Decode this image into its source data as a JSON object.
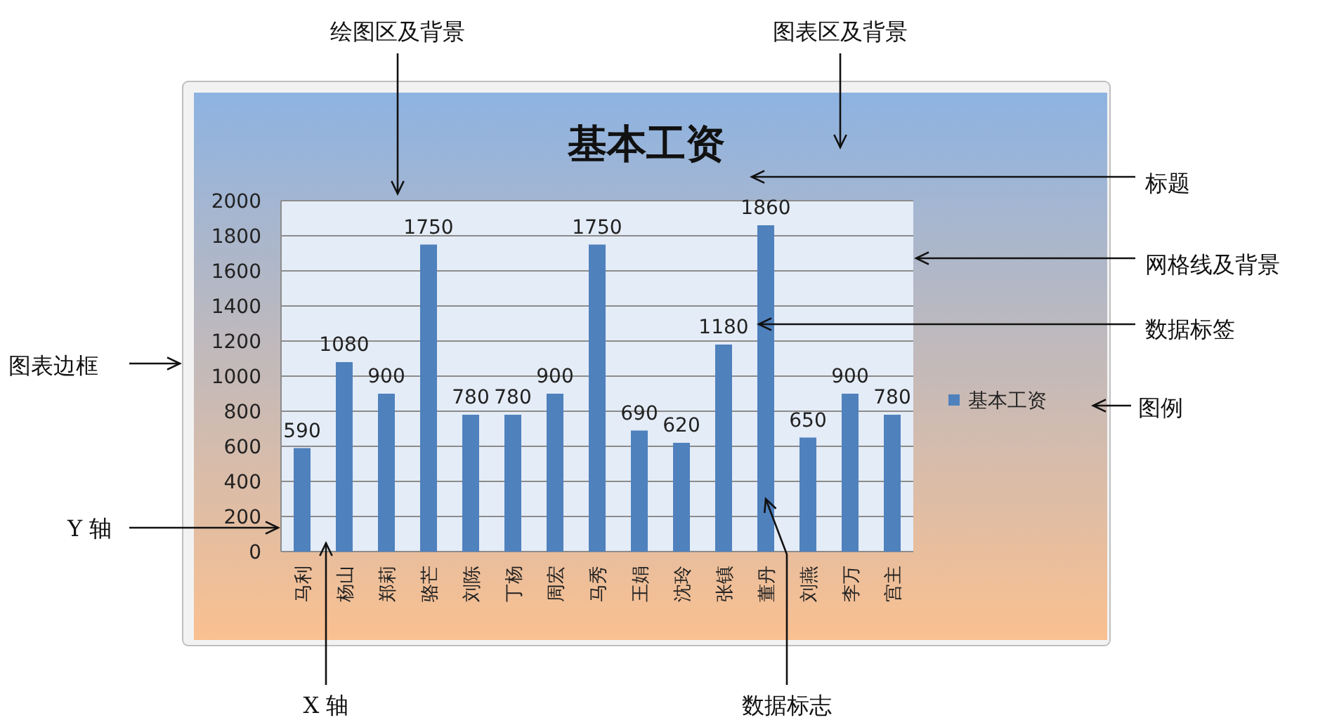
{
  "chart_data": {
    "type": "bar",
    "title": "基本工资",
    "categories": [
      "马利",
      "杨山",
      "郑莉",
      "骆芒",
      "刘陈",
      "丁杨",
      "周宏",
      "马秀",
      "王娟",
      "沈玲",
      "张镇",
      "董丹",
      "刘燕",
      "李万",
      "宫主"
    ],
    "series": [
      {
        "name": "基本工资",
        "color": "#4f81bd",
        "values": [
          590,
          1080,
          900,
          1750,
          780,
          780,
          900,
          1750,
          690,
          620,
          1180,
          1860,
          650,
          900,
          780
        ]
      }
    ],
    "ylim": [
      0,
      2000
    ],
    "yticks": [
      0,
      200,
      400,
      600,
      800,
      1000,
      1200,
      1400,
      1600,
      1800,
      2000
    ],
    "grid": "y",
    "legend": "right",
    "data_labels": true,
    "annotations": [
      "绘图区及背景",
      "图表区及背景",
      "标题",
      "网格线及背景",
      "数据标签",
      "图表边框",
      "图例",
      "Y 轴",
      "X 轴",
      {
        "text": "数据标志",
        "x": "董丹",
        "y": 300
      }
    ]
  }
}
